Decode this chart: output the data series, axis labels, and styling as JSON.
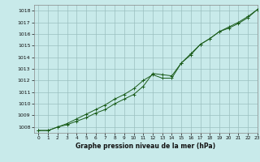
{
  "title": "Graphe pression niveau de la mer (hPa)",
  "bg_color": "#c8eaea",
  "grid_color": "#9bbfbf",
  "line_color": "#1a5c1a",
  "marker_color": "#1a5c1a",
  "xlim": [
    -0.5,
    23
  ],
  "ylim": [
    1007.5,
    1018.5
  ],
  "xticks": [
    0,
    1,
    2,
    3,
    4,
    5,
    6,
    7,
    8,
    9,
    10,
    11,
    12,
    13,
    14,
    15,
    16,
    17,
    18,
    19,
    20,
    21,
    22,
    23
  ],
  "yticks": [
    1008,
    1009,
    1010,
    1011,
    1012,
    1013,
    1014,
    1015,
    1016,
    1017,
    1018
  ],
  "series1": [
    1007.7,
    1007.7,
    1008.0,
    1008.2,
    1008.5,
    1008.8,
    1009.2,
    1009.5,
    1010.0,
    1010.4,
    1010.8,
    1011.5,
    1012.6,
    1012.5,
    1012.4,
    1013.5,
    1014.2,
    1015.1,
    1015.6,
    1016.2,
    1016.6,
    1017.0,
    1017.5,
    1018.1
  ],
  "series2": [
    1007.7,
    1007.7,
    1008.0,
    1008.3,
    1008.7,
    1009.1,
    1009.5,
    1009.9,
    1010.4,
    1010.8,
    1011.3,
    1012.0,
    1012.5,
    1012.2,
    1012.2,
    1013.5,
    1014.3,
    1015.1,
    1015.6,
    1016.2,
    1016.5,
    1016.9,
    1017.4,
    1018.1
  ]
}
